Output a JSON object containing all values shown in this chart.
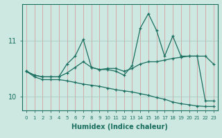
{
  "xlabel": "Humidex (Indice chaleur)",
  "ylabel": "",
  "bg_color": "#cce8e0",
  "line_color": "#1a6e60",
  "grid_color": "#aaccc4",
  "xmin": -0.5,
  "xmax": 23.5,
  "ymin": 9.75,
  "ymax": 11.65,
  "yticks": [
    10,
    11
  ],
  "xticks": [
    0,
    1,
    2,
    3,
    4,
    5,
    6,
    7,
    8,
    9,
    10,
    11,
    12,
    13,
    14,
    15,
    16,
    17,
    18,
    19,
    20,
    21,
    22,
    23
  ],
  "series": [
    [
      10.45,
      10.38,
      10.35,
      10.35,
      10.35,
      10.58,
      10.72,
      11.02,
      10.52,
      10.48,
      10.48,
      10.45,
      10.38,
      10.55,
      11.22,
      11.48,
      11.18,
      10.72,
      11.08,
      10.72,
      10.72,
      10.72,
      9.92,
      9.92
    ],
    [
      10.45,
      10.38,
      10.35,
      10.35,
      10.35,
      10.42,
      10.52,
      10.62,
      10.52,
      10.48,
      10.5,
      10.5,
      10.45,
      10.5,
      10.58,
      10.62,
      10.62,
      10.65,
      10.68,
      10.7,
      10.72,
      10.72,
      10.72,
      10.58
    ],
    [
      10.45,
      10.35,
      10.3,
      10.3,
      10.3,
      10.28,
      10.25,
      10.22,
      10.2,
      10.18,
      10.15,
      10.12,
      10.1,
      10.08,
      10.05,
      10.02,
      9.98,
      9.95,
      9.9,
      9.87,
      9.85,
      9.83,
      9.82,
      9.82
    ]
  ]
}
